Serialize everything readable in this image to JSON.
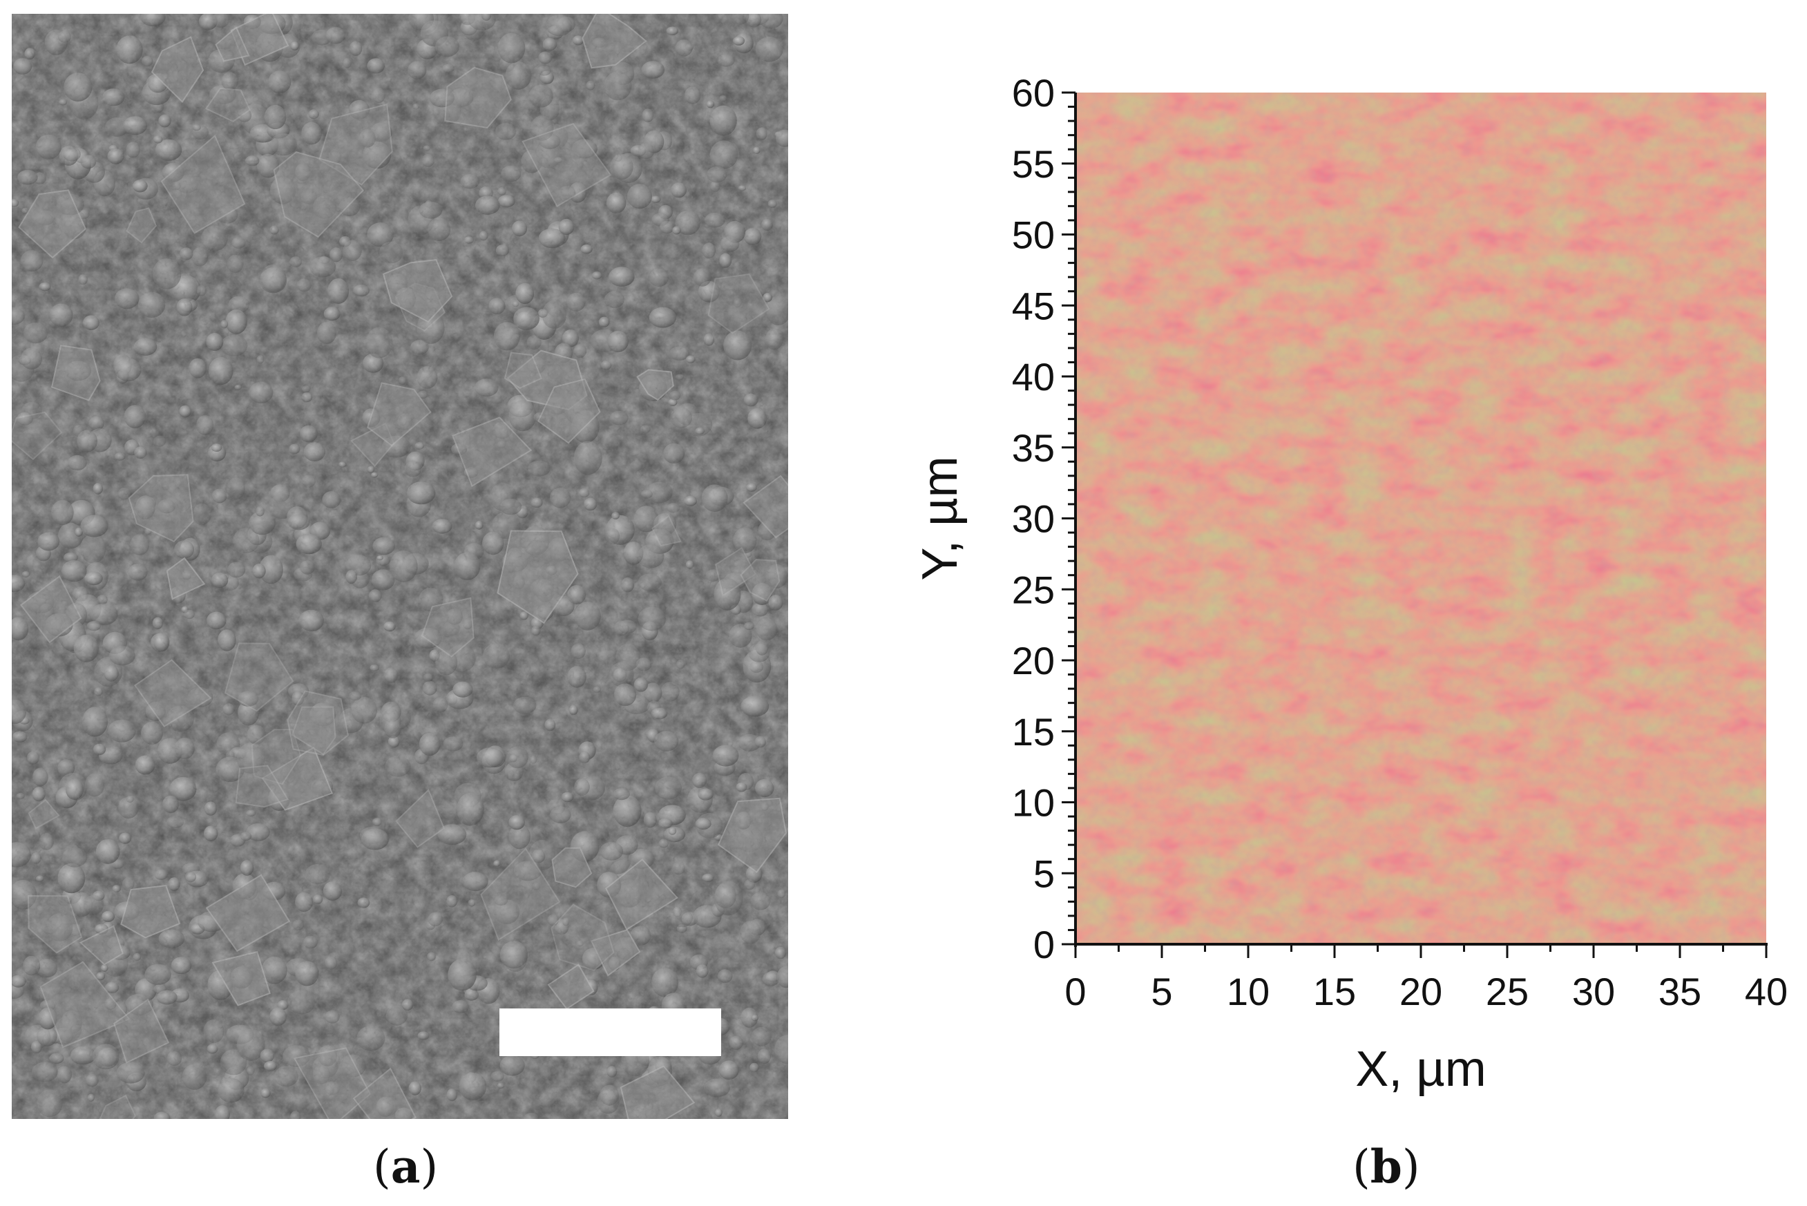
{
  "panels": [
    {
      "id": "a",
      "caption_label": "a",
      "kind": "sem-micrograph",
      "scale_bar_color": "#ffffff"
    },
    {
      "id": "b",
      "caption_label": "b",
      "kind": "composition-map"
    }
  ],
  "chart_data": {
    "type": "heatmap",
    "title": "",
    "xlabel": "X, µm",
    "ylabel": "Y, µm",
    "xlim": [
      0,
      40
    ],
    "ylim": [
      0,
      60
    ],
    "x_ticks": [
      "0",
      "5",
      "10",
      "15",
      "20",
      "25",
      "30",
      "35",
      "40"
    ],
    "y_ticks": [
      "0",
      "5",
      "10",
      "15",
      "20",
      "25",
      "30",
      "35",
      "40",
      "45",
      "50",
      "55",
      "60"
    ],
    "grid": false,
    "legend": "none",
    "colors": {
      "base": "#b8825c",
      "pink": "#c87a78",
      "green": "#a4a65c",
      "axis": "#111111"
    }
  }
}
